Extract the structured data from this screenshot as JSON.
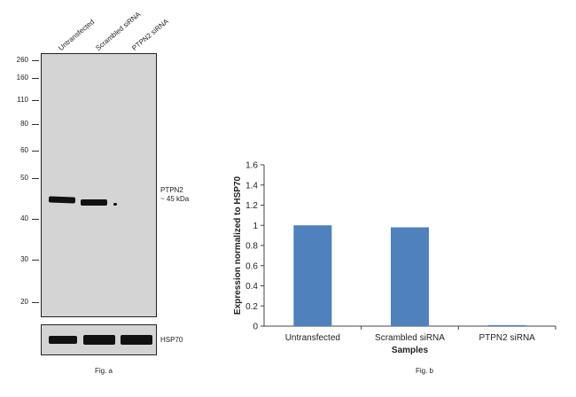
{
  "fig_a": {
    "lanes": [
      "Untransfected",
      "Scrambled siRNA",
      "PTPN2 siRNA"
    ],
    "markers": [
      "260",
      "160",
      "110",
      "80",
      "60",
      "50",
      "40",
      "30",
      "20"
    ],
    "band_label_line1": "PTPN2",
    "band_label_line2": "~ 45 kDa",
    "loading_label": "HSP70",
    "caption": "Fig. a"
  },
  "fig_b": {
    "caption": "Fig. b"
  },
  "chart_data": {
    "type": "bar",
    "categories": [
      "Untransfected",
      "Scrambled siRNA",
      "PTPN2 siRNA"
    ],
    "values": [
      1.0,
      0.98,
      0.01
    ],
    "title": "",
    "xlabel": "Samples",
    "ylabel": "Expression normalized to HSP70",
    "ylim": [
      0,
      1.6
    ],
    "yticks": [
      "0",
      "0.2",
      "0.4",
      "0.6",
      "0.8",
      "1",
      "1.2",
      "1.4",
      "1.6"
    ],
    "bar_color": "#4f81bd",
    "grid": false
  }
}
